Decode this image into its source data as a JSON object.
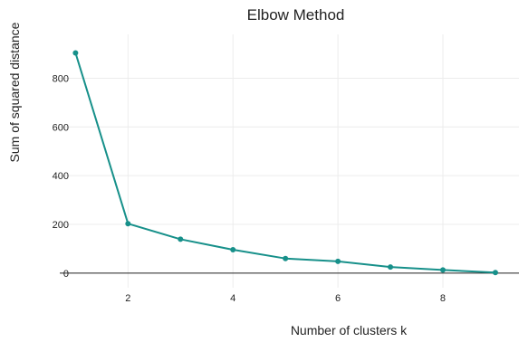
{
  "chart_data": {
    "type": "line",
    "title": "Elbow Method",
    "xlabel": "Number of clusters k",
    "ylabel": "Sum of squared distance",
    "x": [
      1,
      2,
      3,
      4,
      5,
      6,
      7,
      8,
      9
    ],
    "values": [
      904,
      203,
      139,
      96,
      60,
      48,
      25,
      13,
      2
    ],
    "xticks": [
      2,
      4,
      6,
      8
    ],
    "yticks": [
      0,
      200,
      400,
      600,
      800
    ],
    "xlim": [
      0.7,
      9.45
    ],
    "ylim": [
      -60,
      980
    ],
    "grid": true,
    "legend": "none",
    "colors": {
      "line": "#17908a",
      "grid": "#ececec",
      "axis": "#222222"
    }
  }
}
